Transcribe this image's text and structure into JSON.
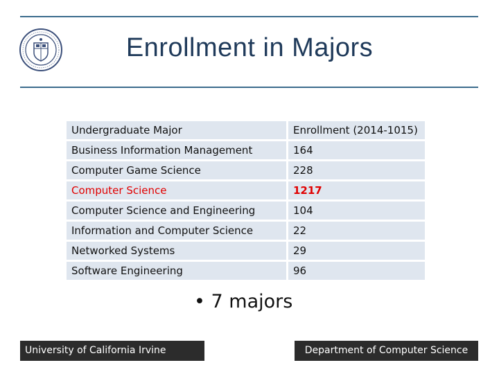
{
  "slide": {
    "title": "Enrollment in Majors"
  },
  "table": {
    "headers": [
      "Undergraduate Major",
      "Enrollment (2014-1015)"
    ],
    "rows": [
      {
        "major": "Business Information Management",
        "enrollment": "164"
      },
      {
        "major": "Computer Game Science",
        "enrollment": "228"
      },
      {
        "major": "Computer Science",
        "enrollment": "1217"
      },
      {
        "major": "Computer Science and Engineering",
        "enrollment": "104"
      },
      {
        "major": "Information and Computer Science",
        "enrollment": "22"
      },
      {
        "major": "Networked Systems",
        "enrollment": "29"
      },
      {
        "major": "Software Engineering",
        "enrollment": "96"
      }
    ]
  },
  "bullets": [
    "7 majors"
  ],
  "footer": {
    "left": "University of California Irvine",
    "right": "Department of Computer Science"
  },
  "colors": {
    "title": "#1f3a5a",
    "rule": "#3a6b8c",
    "table_fill": "#dfe6ef",
    "highlight": "#e00000",
    "footer_bg": "#2c2c2c"
  },
  "icons": {
    "seal": "university-seal-icon"
  }
}
